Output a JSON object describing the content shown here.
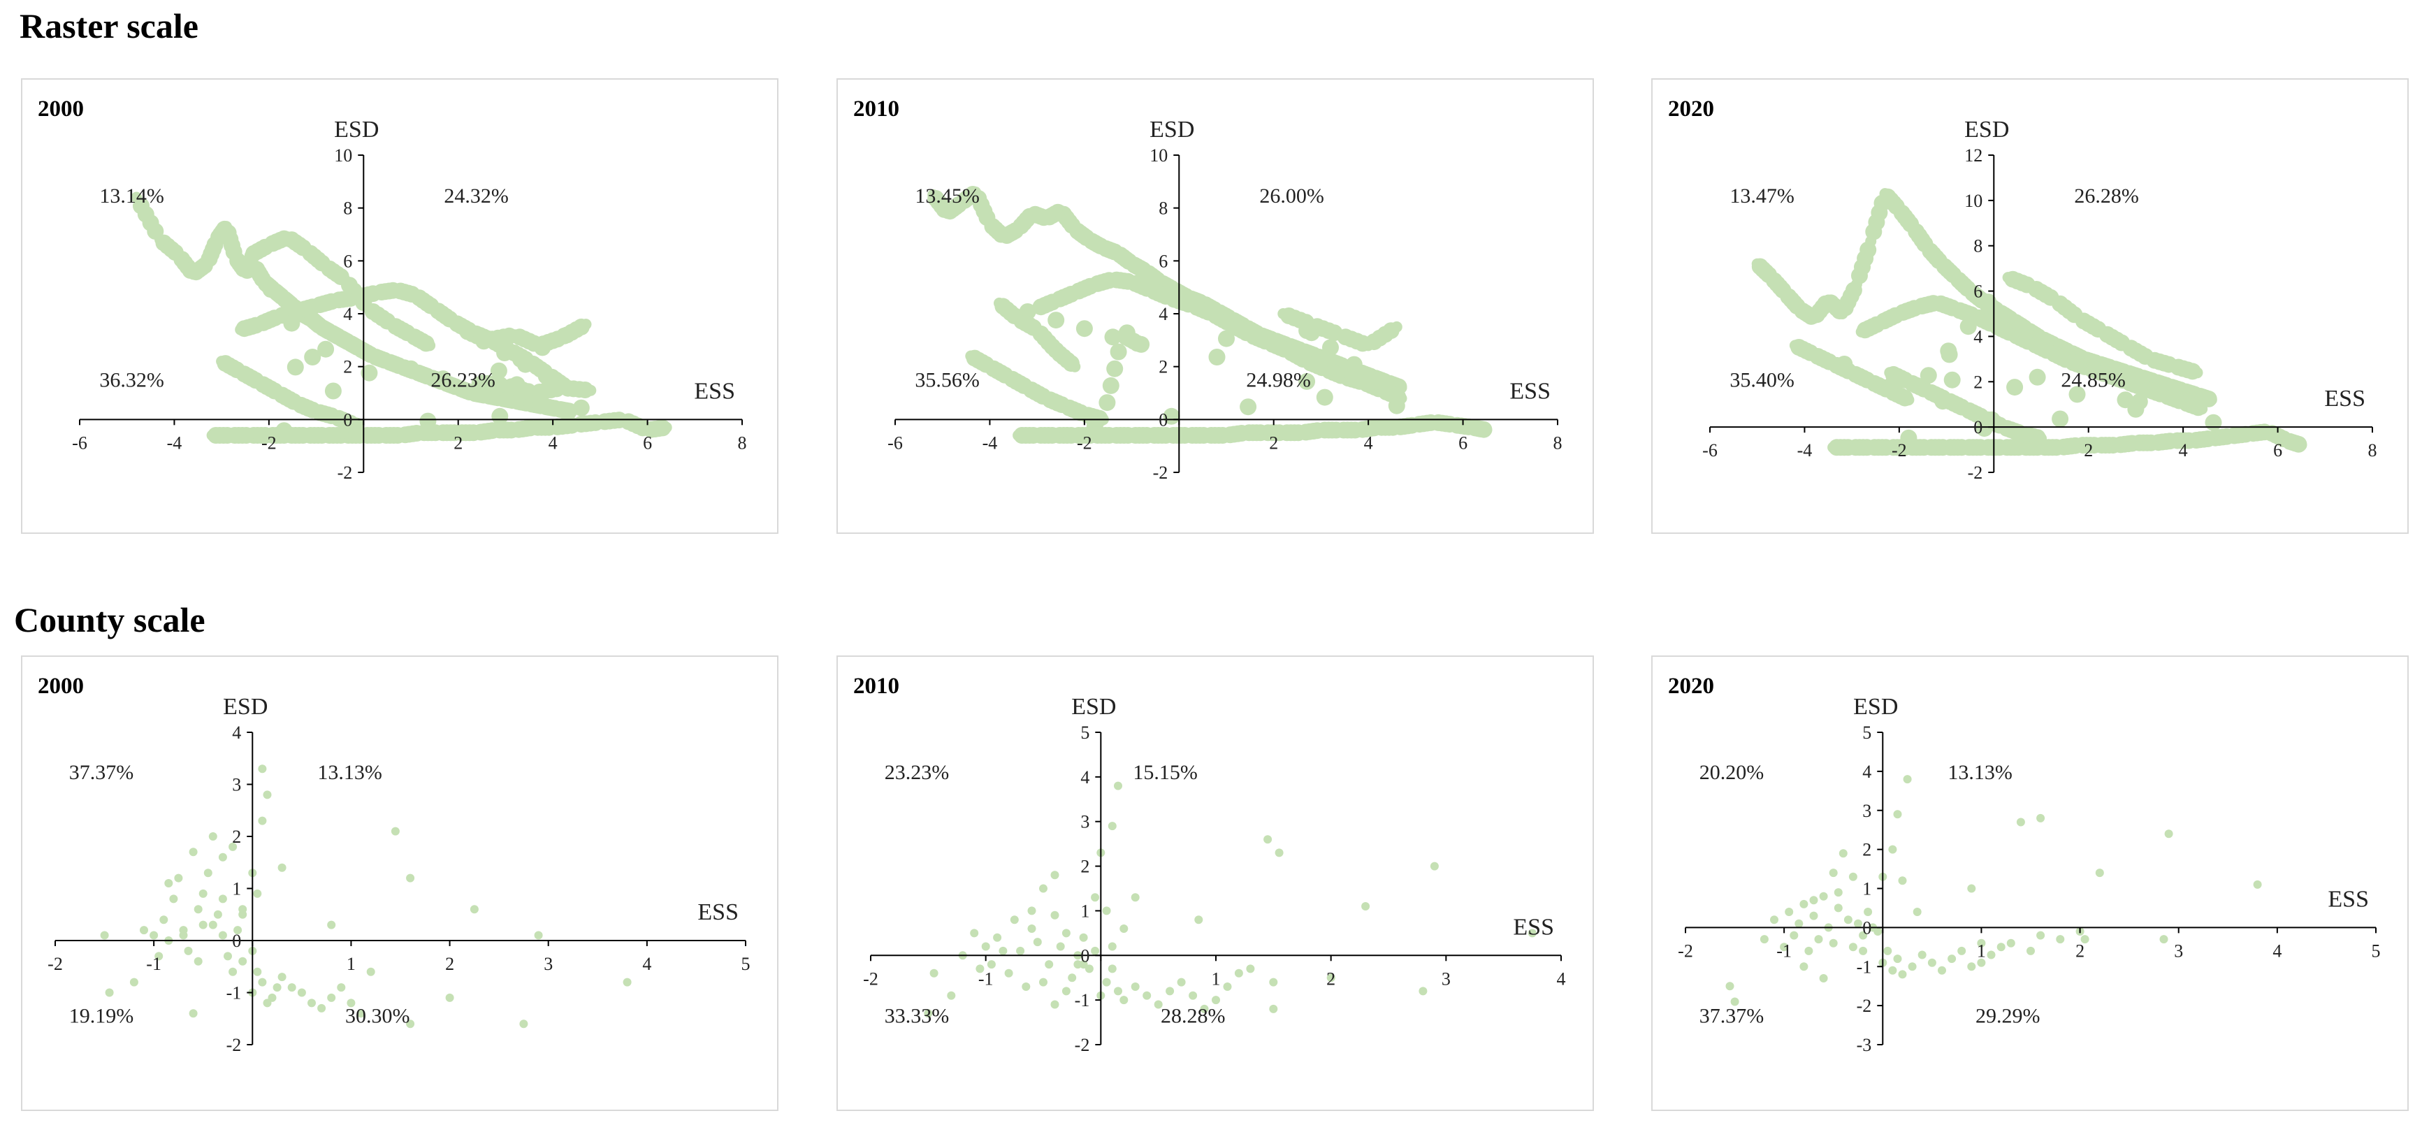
{
  "sections": {
    "raster": "Raster scale",
    "county": "County scale"
  },
  "colors": {
    "point": "#c5e0b4",
    "axis": "#000000",
    "text": "#222222",
    "border": "#d9d9d9"
  },
  "chart_data": [
    {
      "id": "raster-2000",
      "type": "scatter",
      "section": "raster",
      "year": "2000",
      "xlabel": "ESS",
      "ylabel": "ESD",
      "xlim": [
        -6,
        8
      ],
      "ylim": [
        -2,
        10
      ],
      "xticks": [
        -6,
        -4,
        -2,
        0,
        2,
        4,
        6,
        8
      ],
      "yticks": [
        -2,
        0,
        2,
        4,
        6,
        8,
        10
      ],
      "quadrant_labels": {
        "NW": "13.14%",
        "NE": "24.32%",
        "SW": "36.32%",
        "SE": "26.23%"
      },
      "x": [
        -4.8,
        -4.3,
        -3.9,
        -3.6,
        -3.3,
        -3.1,
        -2.9,
        -2.7,
        -2.5,
        -2.3,
        -2.1,
        -1.9,
        -1.7,
        -1.5,
        -1.3,
        -1.1,
        -0.9,
        -0.7,
        -0.5,
        -0.3,
        -0.1,
        0.2,
        0.5,
        0.8,
        1.1,
        1.4,
        1.7,
        2.0,
        2.3,
        2.6,
        2.9,
        3.2,
        3.5,
        3.8,
        4.1,
        4.4,
        -3.2,
        -2.8,
        -2.4,
        -2.0,
        -1.6,
        -1.2,
        -0.8,
        -0.4,
        0.0,
        0.4,
        0.8,
        1.2,
        1.6,
        2.0,
        2.4,
        2.8,
        3.2,
        3.6,
        4.0,
        4.5,
        5.0,
        5.5,
        6.0,
        6.4,
        -2.6,
        -2.2,
        -1.8,
        -1.4,
        -1.0,
        -0.6,
        -0.2,
        0.3,
        0.7,
        1.1,
        1.5,
        1.9,
        2.3,
        2.7,
        3.1,
        3.5,
        3.9,
        4.3,
        2.1,
        2.6,
        3.2,
        3.7,
        4.2,
        4.7,
        2.4,
        3.0,
        3.6,
        4.2,
        4.8,
        -3.0,
        -2.6,
        -2.2,
        -1.8,
        -1.4,
        -1.0,
        -0.6,
        -0.2,
        -2.4,
        -2.0,
        -1.6,
        -1.2,
        -0.8,
        -0.4,
        0.1,
        0.6,
        1.0,
        1.4
      ],
      "y": [
        8.4,
        6.8,
        6.2,
        5.5,
        5.9,
        6.8,
        7.3,
        6.1,
        5.6,
        5.8,
        5.2,
        4.9,
        4.6,
        4.3,
        4.0,
        3.8,
        3.5,
        3.3,
        3.1,
        2.9,
        2.7,
        2.4,
        2.2,
        2.0,
        1.8,
        1.6,
        1.4,
        1.2,
        1.0,
        0.9,
        0.8,
        0.7,
        0.6,
        0.5,
        0.4,
        0.3,
        -0.6,
        -0.6,
        -0.6,
        -0.6,
        -0.6,
        -0.6,
        -0.6,
        -0.6,
        -0.6,
        -0.6,
        -0.6,
        -0.5,
        -0.5,
        -0.5,
        -0.5,
        -0.4,
        -0.4,
        -0.3,
        -0.3,
        -0.2,
        -0.1,
        0.0,
        -0.4,
        -0.3,
        3.4,
        3.6,
        3.9,
        4.1,
        4.3,
        4.5,
        4.6,
        4.8,
        4.9,
        4.7,
        4.2,
        3.7,
        3.3,
        3.0,
        2.6,
        2.2,
        1.7,
        1.2,
        3.4,
        3.0,
        3.2,
        2.8,
        3.1,
        3.6,
        1.4,
        1.3,
        1.0,
        1.2,
        1.1,
        2.2,
        1.8,
        1.4,
        1.0,
        0.6,
        0.3,
        0.1,
        -0.2,
        6.2,
        6.6,
        6.9,
        6.4,
        5.8,
        5.3,
        4.2,
        3.6,
        3.2,
        2.8
      ]
    },
    {
      "id": "raster-2010",
      "type": "scatter",
      "section": "raster",
      "year": "2010",
      "xlabel": "ESS",
      "ylabel": "ESD",
      "xlim": [
        -6,
        8
      ],
      "ylim": [
        -2,
        10
      ],
      "xticks": [
        -6,
        -4,
        -2,
        0,
        2,
        4,
        6,
        8
      ],
      "yticks": [
        -2,
        0,
        2,
        4,
        6,
        8,
        10
      ],
      "quadrant_labels": {
        "NW": "13.45%",
        "NE": "26.00%",
        "SW": "35.56%",
        "SE": "24.98%"
      },
      "x": [
        -5.2,
        -4.9,
        -4.6,
        -4.3,
        -4.0,
        -3.7,
        -3.4,
        -3.1,
        -2.8,
        -2.5,
        -2.2,
        -1.9,
        -1.6,
        -1.3,
        -1.0,
        -0.7,
        -0.4,
        -0.1,
        0.2,
        0.5,
        0.8,
        1.1,
        1.4,
        1.7,
        2.0,
        2.3,
        2.6,
        2.9,
        3.2,
        3.5,
        3.8,
        4.1,
        4.4,
        4.7,
        -3.4,
        -3.0,
        -2.6,
        -2.2,
        -1.8,
        -1.4,
        -1.0,
        -0.6,
        -0.2,
        0.2,
        0.6,
        1.0,
        1.4,
        1.8,
        2.2,
        2.6,
        3.0,
        3.4,
        3.8,
        4.2,
        4.6,
        5.0,
        5.4,
        5.8,
        6.2,
        6.5,
        -3.0,
        -2.6,
        -2.2,
        -1.8,
        -1.4,
        -1.0,
        -0.6,
        -0.2,
        0.3,
        0.7,
        1.1,
        1.5,
        1.9,
        2.3,
        2.7,
        3.1,
        3.5,
        3.9,
        4.3,
        4.7,
        2.2,
        2.8,
        3.4,
        4.0,
        4.6,
        -4.4,
        -4.0,
        -3.6,
        -3.2,
        -2.8,
        -2.4,
        -2.0,
        -1.6,
        -1.2,
        -0.8,
        -3.8,
        -3.4,
        -3.0,
        -2.6,
        -2.2
      ],
      "y": [
        8.5,
        7.8,
        8.2,
        8.6,
        7.4,
        6.9,
        7.2,
        7.8,
        7.6,
        7.9,
        7.2,
        6.8,
        6.5,
        6.3,
        5.9,
        5.6,
        5.2,
        4.9,
        4.6,
        4.4,
        4.1,
        3.8,
        3.5,
        3.2,
        3.0,
        2.8,
        2.6,
        2.4,
        2.2,
        2.0,
        1.8,
        1.6,
        1.4,
        1.2,
        -0.6,
        -0.6,
        -0.6,
        -0.6,
        -0.6,
        -0.6,
        -0.6,
        -0.6,
        -0.6,
        -0.6,
        -0.6,
        -0.6,
        -0.5,
        -0.5,
        -0.5,
        -0.5,
        -0.4,
        -0.4,
        -0.4,
        -0.3,
        -0.3,
        -0.2,
        -0.1,
        -0.2,
        -0.3,
        -0.4,
        4.2,
        4.5,
        4.8,
        5.1,
        5.3,
        5.2,
        4.9,
        4.6,
        4.3,
        4.0,
        3.6,
        3.2,
        2.9,
        2.6,
        2.2,
        1.9,
        1.6,
        1.4,
        1.1,
        0.8,
        4.0,
        3.6,
        3.2,
        2.8,
        3.5,
        2.4,
        2.0,
        1.6,
        1.2,
        0.8,
        0.5,
        0.2,
        0.0,
        3.2,
        2.8,
        4.4,
        3.8,
        3.4,
        2.6,
        2.0
      ]
    },
    {
      "id": "raster-2020",
      "type": "scatter",
      "section": "raster",
      "year": "2020",
      "xlabel": "ESS",
      "ylabel": "ESD",
      "xlim": [
        -6,
        8
      ],
      "ylim": [
        -2,
        12
      ],
      "xticks": [
        -6,
        -4,
        -2,
        0,
        2,
        4,
        6,
        8
      ],
      "yticks": [
        -2,
        0,
        2,
        4,
        6,
        8,
        10,
        12
      ],
      "quadrant_labels": {
        "NW": "13.47%",
        "NE": "26.28%",
        "SW": "35.40%",
        "SE": "24.85%"
      },
      "x": [
        -5.0,
        -4.7,
        -4.4,
        -4.1,
        -3.8,
        -3.5,
        -3.2,
        -2.9,
        -2.6,
        -2.3,
        -2.0,
        -1.7,
        -1.4,
        -1.1,
        -0.8,
        -0.5,
        -0.2,
        0.1,
        0.4,
        0.7,
        1.0,
        1.3,
        1.6,
        1.9,
        2.2,
        2.5,
        2.8,
        3.1,
        3.4,
        3.7,
        4.0,
        4.3,
        4.6,
        -3.4,
        -3.0,
        -2.6,
        -2.2,
        -1.8,
        -1.4,
        -1.0,
        -0.6,
        -0.2,
        0.2,
        0.6,
        1.0,
        1.4,
        1.8,
        2.2,
        2.6,
        3.0,
        3.4,
        3.8,
        4.2,
        4.6,
        5.0,
        5.4,
        5.8,
        6.2,
        6.5,
        -2.8,
        -2.4,
        -2.0,
        -1.6,
        -1.2,
        -0.8,
        -0.4,
        0.0,
        0.4,
        0.8,
        1.2,
        1.6,
        2.0,
        2.4,
        2.8,
        3.2,
        3.6,
        4.0,
        4.4,
        -2.2,
        -1.8,
        -1.4,
        -1.0,
        -0.6,
        -0.2,
        0.2,
        0.6,
        1.0,
        -4.2,
        -3.8,
        -3.4,
        -3.0,
        -2.6,
        -2.2,
        -1.8,
        0.3,
        0.8,
        1.3,
        1.8,
        2.3,
        2.8,
        3.3,
        3.8,
        4.3
      ],
      "y": [
        7.2,
        6.6,
        5.9,
        5.2,
        4.8,
        5.6,
        5.0,
        6.3,
        8.2,
        10.3,
        9.6,
        8.8,
        7.9,
        7.2,
        6.6,
        6.0,
        5.5,
        5.1,
        4.7,
        4.3,
        3.9,
        3.6,
        3.3,
        3.0,
        2.8,
        2.6,
        2.4,
        2.2,
        2.0,
        1.8,
        1.6,
        1.4,
        1.2,
        -0.9,
        -0.9,
        -0.9,
        -0.9,
        -0.9,
        -0.9,
        -0.9,
        -0.9,
        -0.9,
        -0.9,
        -0.9,
        -0.9,
        -0.9,
        -0.8,
        -0.8,
        -0.8,
        -0.7,
        -0.7,
        -0.6,
        -0.6,
        -0.5,
        -0.4,
        -0.3,
        -0.2,
        -0.6,
        -0.8,
        4.2,
        4.6,
        5.0,
        5.3,
        5.5,
        5.2,
        4.9,
        4.5,
        4.1,
        3.7,
        3.3,
        2.9,
        2.6,
        2.3,
        2.0,
        1.7,
        1.4,
        1.1,
        0.8,
        2.4,
        2.0,
        1.6,
        1.2,
        0.8,
        0.4,
        0.0,
        -0.3,
        -0.5,
        3.6,
        3.2,
        2.8,
        2.4,
        2.0,
        1.6,
        1.2,
        6.6,
        6.2,
        5.6,
        4.8,
        4.2,
        3.6,
        3.0,
        2.7,
        2.4
      ]
    },
    {
      "id": "county-2000",
      "type": "scatter",
      "section": "county",
      "year": "2000",
      "xlabel": "ESS",
      "ylabel": "ESD",
      "xlim": [
        -2,
        5
      ],
      "ylim": [
        -2,
        4
      ],
      "xticks": [
        -2,
        -1,
        0,
        1,
        2,
        3,
        4,
        5
      ],
      "yticks": [
        -2,
        -1,
        0,
        1,
        2,
        3,
        4
      ],
      "quadrant_labels": {
        "NW": "37.37%",
        "NE": "13.13%",
        "SW": "19.19%",
        "SE": "30.30%"
      },
      "x": [
        -1.5,
        -1.45,
        -1.2,
        -1.1,
        -1.0,
        -0.95,
        -0.9,
        -0.85,
        -0.8,
        -0.75,
        -0.7,
        -0.65,
        -0.6,
        -0.55,
        -0.5,
        -0.45,
        -0.4,
        -0.35,
        -0.3,
        -0.25,
        -0.2,
        -0.15,
        -0.1,
        -0.85,
        -0.7,
        -0.55,
        -0.4,
        -0.3,
        -0.2,
        -0.1,
        0.0,
        0.05,
        0.1,
        0.15,
        0.2,
        0.25,
        0.3,
        0.4,
        0.5,
        0.6,
        0.7,
        0.8,
        0.9,
        1.0,
        1.1,
        1.2,
        0.1,
        0.15,
        0.1,
        0.0,
        0.05,
        0.3,
        0.8,
        1.45,
        1.6,
        1.6,
        2.25,
        2.0,
        2.75,
        2.9,
        3.8,
        0.0,
        -0.1,
        -0.3,
        -0.5,
        -0.6
      ],
      "y": [
        0.1,
        -1.0,
        -0.8,
        0.2,
        0.1,
        -0.3,
        0.4,
        0.0,
        0.8,
        1.2,
        0.2,
        -0.2,
        1.7,
        0.6,
        0.3,
        1.3,
        2.0,
        0.5,
        0.1,
        -0.3,
        -0.6,
        0.2,
        0.5,
        1.1,
        0.1,
        -0.4,
        0.3,
        0.8,
        1.8,
        -0.4,
        -1.0,
        -0.6,
        -0.8,
        -1.2,
        -1.1,
        -0.9,
        -0.7,
        -0.9,
        -1.0,
        -1.2,
        -1.3,
        -1.1,
        -0.9,
        -1.2,
        -1.4,
        -0.6,
        3.3,
        2.8,
        2.3,
        1.3,
        0.9,
        1.4,
        0.3,
        2.1,
        1.2,
        -1.6,
        0.6,
        -1.1,
        -1.6,
        0.1,
        -0.8,
        -0.2,
        0.6,
        1.6,
        0.9,
        -1.4
      ]
    },
    {
      "id": "county-2010",
      "type": "scatter",
      "section": "county",
      "year": "2010",
      "xlabel": "ESS",
      "ylabel": "ESD",
      "xlim": [
        -2,
        4
      ],
      "ylim": [
        -2,
        5
      ],
      "xticks": [
        -2,
        -1,
        0,
        1,
        2,
        3,
        4
      ],
      "yticks": [
        -2,
        -1,
        0,
        1,
        2,
        3,
        4,
        5
      ],
      "quadrant_labels": {
        "NW": "23.23%",
        "NE": "15.15%",
        "SW": "33.33%",
        "SE": "28.28%"
      },
      "x": [
        -1.5,
        -1.45,
        -1.3,
        -1.2,
        -1.1,
        -1.05,
        -1.0,
        -0.95,
        -0.9,
        -0.85,
        -0.8,
        -0.75,
        -0.7,
        -0.65,
        -0.6,
        -0.55,
        -0.5,
        -0.45,
        -0.4,
        -0.35,
        -0.3,
        -0.25,
        -0.2,
        -0.15,
        -0.1,
        -0.05,
        -0.6,
        -0.5,
        -0.4,
        -0.3,
        -0.15,
        0.0,
        0.05,
        0.1,
        0.15,
        0.2,
        0.3,
        0.4,
        0.5,
        0.6,
        0.7,
        0.8,
        0.9,
        1.0,
        1.1,
        1.2,
        1.3,
        1.5,
        0.15,
        0.1,
        0.0,
        -0.05,
        0.05,
        0.2,
        0.3,
        0.85,
        1.45,
        1.55,
        2.3,
        2.9,
        3.75,
        1.5,
        2.0,
        2.8,
        0.1,
        -0.2,
        -0.4
      ],
      "y": [
        -1.3,
        -0.4,
        -0.9,
        0.0,
        0.5,
        -0.3,
        0.2,
        -0.2,
        0.4,
        0.1,
        -0.4,
        0.8,
        0.1,
        -0.7,
        0.6,
        0.3,
        1.5,
        -0.2,
        0.9,
        0.2,
        0.5,
        -0.5,
        0.0,
        0.4,
        -0.3,
        0.1,
        1.0,
        -0.6,
        1.8,
        -0.8,
        -0.2,
        -0.9,
        -0.6,
        -0.3,
        -0.8,
        -1.0,
        -0.7,
        -0.9,
        -1.1,
        -0.8,
        -0.6,
        -0.9,
        -1.2,
        -1.0,
        -0.7,
        -0.4,
        -0.3,
        -0.6,
        3.8,
        2.9,
        2.3,
        1.3,
        1.0,
        0.6,
        1.3,
        0.8,
        2.6,
        2.3,
        1.1,
        2.0,
        0.5,
        -1.2,
        -0.5,
        -0.8,
        0.2,
        -0.2,
        -1.1
      ]
    },
    {
      "id": "county-2020",
      "type": "scatter",
      "section": "county",
      "year": "2020",
      "xlabel": "ESS",
      "ylabel": "ESD",
      "xlim": [
        -2,
        5
      ],
      "ylim": [
        -3,
        5
      ],
      "xticks": [
        -2,
        -1,
        0,
        1,
        2,
        3,
        4,
        5
      ],
      "yticks": [
        -3,
        -2,
        -1,
        0,
        1,
        2,
        3,
        4,
        5
      ],
      "quadrant_labels": {
        "NW": "20.20%",
        "NE": "13.13%",
        "SW": "37.37%",
        "SE": "29.29%"
      },
      "x": [
        -1.55,
        -1.5,
        -1.2,
        -1.1,
        -1.0,
        -0.95,
        -0.9,
        -0.85,
        -0.8,
        -0.75,
        -0.7,
        -0.65,
        -0.6,
        -0.55,
        -0.5,
        -0.45,
        -0.4,
        -0.35,
        -0.3,
        -0.25,
        -0.2,
        -0.15,
        -0.1,
        -0.05,
        -0.8,
        -0.6,
        -0.45,
        -0.3,
        -0.2,
        0.0,
        0.05,
        0.1,
        0.15,
        0.2,
        0.3,
        0.4,
        0.5,
        0.6,
        0.7,
        0.8,
        0.9,
        1.0,
        1.1,
        1.2,
        1.3,
        1.5,
        1.8,
        2.0,
        0.25,
        0.15,
        0.1,
        0.0,
        0.2,
        0.35,
        0.9,
        1.4,
        1.6,
        2.2,
        2.9,
        3.8,
        1.0,
        1.6,
        2.05,
        2.85,
        -0.5,
        -0.7
      ],
      "y": [
        -1.5,
        -1.9,
        -0.3,
        0.2,
        -0.5,
        0.4,
        -0.2,
        0.1,
        0.6,
        -0.6,
        0.3,
        -0.3,
        0.8,
        0.0,
        -0.4,
        0.5,
        1.9,
        0.2,
        -0.5,
        0.1,
        -0.2,
        0.4,
        0.0,
        -0.1,
        -1.0,
        -1.3,
        0.9,
        1.3,
        -0.6,
        -0.9,
        -0.6,
        -1.1,
        -0.8,
        -1.2,
        -1.0,
        -0.7,
        -0.9,
        -1.1,
        -0.8,
        -0.6,
        -1.0,
        -0.9,
        -0.7,
        -0.5,
        -0.4,
        -0.6,
        -0.3,
        -0.1,
        3.8,
        2.9,
        2.0,
        1.3,
        1.2,
        0.4,
        1.0,
        2.7,
        2.8,
        1.4,
        2.4,
        1.1,
        -0.4,
        -0.2,
        -0.3,
        -0.3,
        1.4,
        0.7
      ]
    }
  ]
}
